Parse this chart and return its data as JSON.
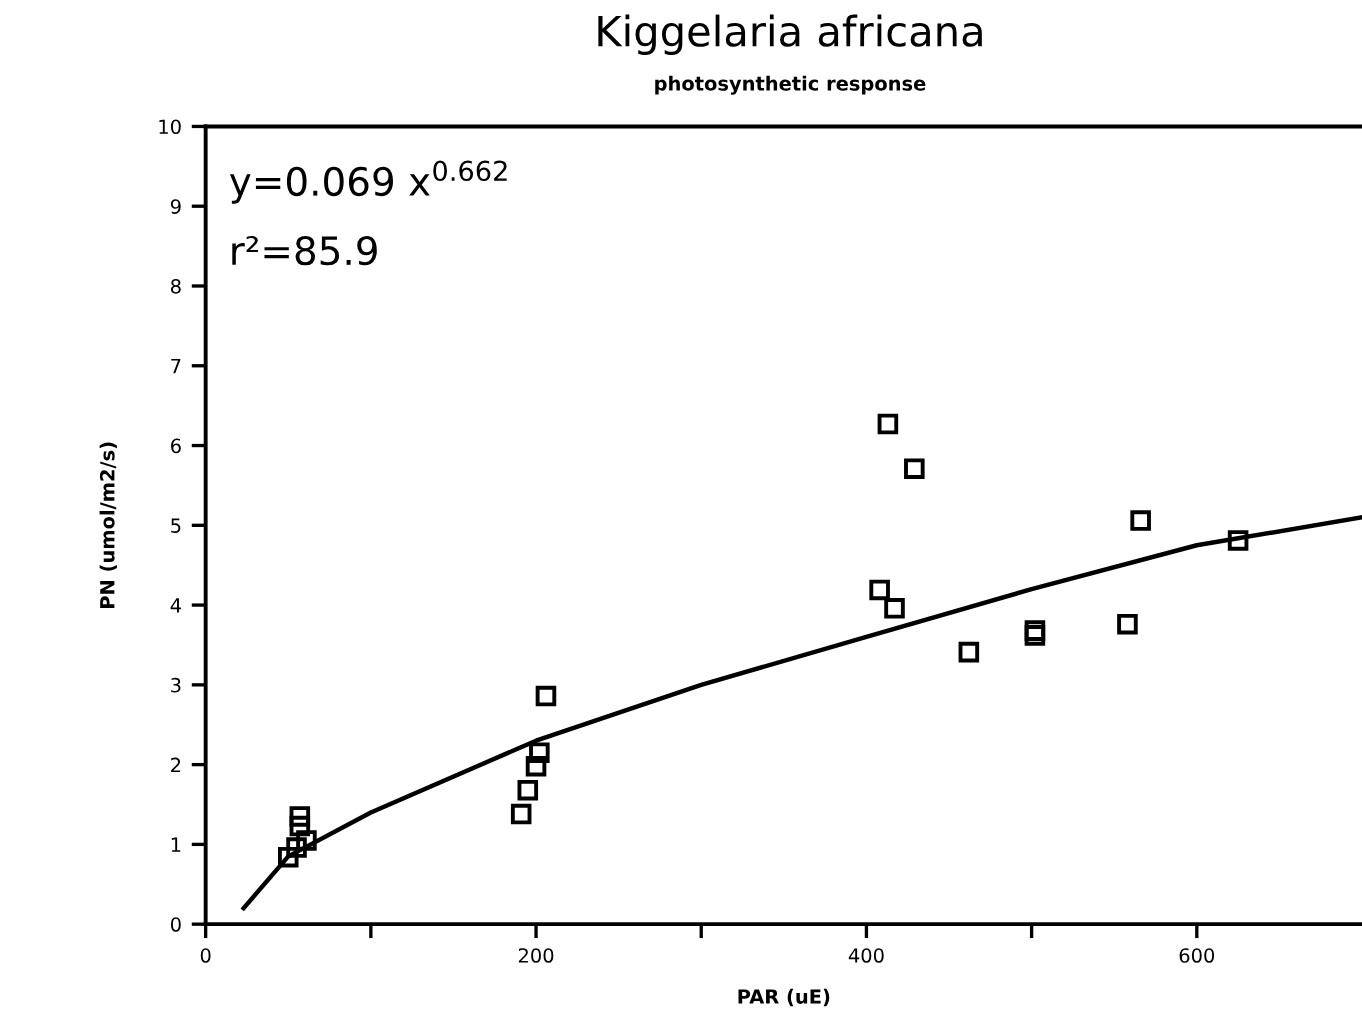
{
  "chart_data": {
    "type": "scatter",
    "title": "Kiggelaria africana",
    "subtitle": "photosynthetic response",
    "xlabel": "PAR (uE)",
    "ylabel": "PN (umol/m2/s)",
    "annotations": [
      "y=0.069 x$^{0.662}$",
      "r²=85.9"
    ],
    "xlim": [
      0,
      700
    ],
    "ylim": [
      0,
      10
    ],
    "xticks": [
      0,
      {
        "value": 100,
        "label": null
      },
      200,
      {
        "value": 300,
        "label": null
      },
      400,
      {
        "value": 500,
        "label": null
      },
      600
    ],
    "yticks": [
      0,
      1,
      2,
      3,
      4,
      5,
      6,
      7,
      8,
      9,
      10
    ],
    "grid": false,
    "marker": "square",
    "series": [
      {
        "color": "#000000",
        "x": [
          50,
          55,
          57,
          57,
          61,
          191,
          195,
          200,
          202,
          206,
          408,
          413,
          417,
          429,
          462,
          502,
          502,
          558,
          566,
          625
        ],
        "values": [
          0.84,
          0.96,
          1.35,
          1.23,
          1.05,
          1.38,
          1.68,
          1.98,
          2.15,
          2.86,
          4.19,
          6.27,
          3.96,
          5.71,
          3.41,
          3.68,
          3.62,
          3.76,
          5.06,
          4.81
        ]
      },
      {
        "type": "line",
        "color": "#000000",
        "marker": "none",
        "line_style": "solid",
        "x": [
          23,
          50,
          100,
          200,
          300,
          400,
          500,
          600,
          700
        ],
        "values": [
          0.2,
          0.85,
          1.4,
          2.3,
          3.0,
          3.6,
          4.2,
          4.75,
          5.1
        ]
      }
    ]
  }
}
